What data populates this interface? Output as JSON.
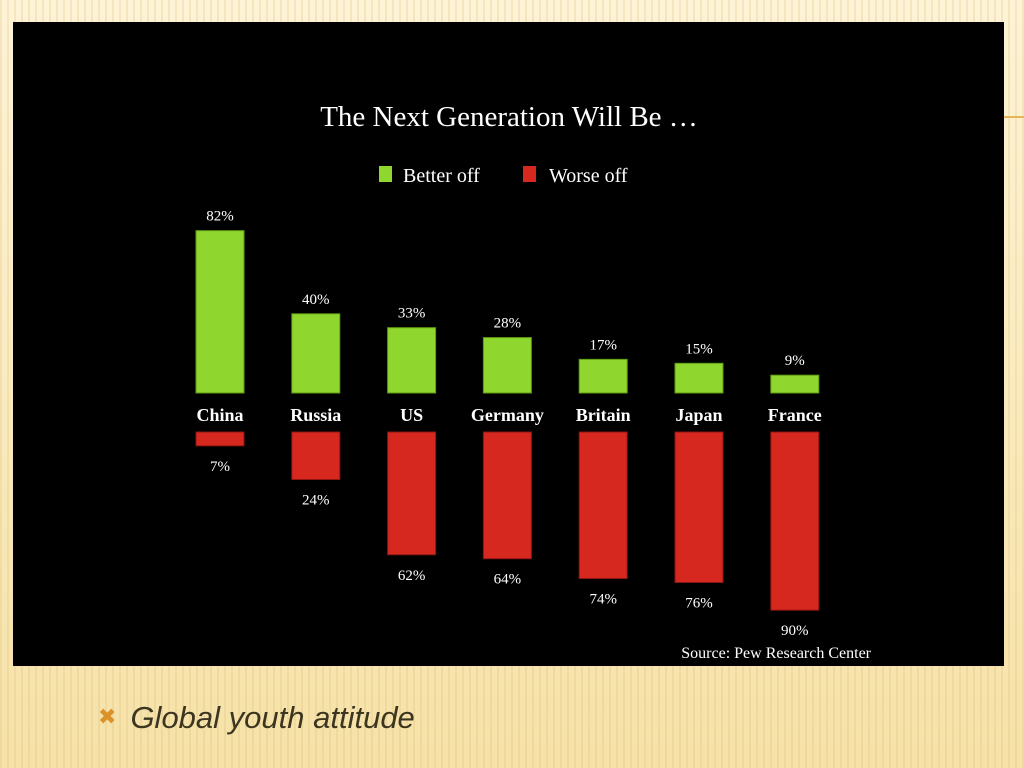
{
  "slide": {
    "bullet_icon": "x-mark-bullet-icon",
    "bullet_symbol": "✖",
    "bullet_text": "Global youth attitude",
    "accent_color": "#d9932a",
    "background_color": "#fbedc6"
  },
  "chart_data": {
    "type": "bar",
    "title": "The Next Generation Will Be …",
    "categories": [
      "China",
      "Russia",
      "US",
      "Germany",
      "Britain",
      "Japan",
      "France"
    ],
    "series": [
      {
        "name": "Better off",
        "color": "#8fd62e",
        "values": [
          82,
          40,
          33,
          28,
          17,
          15,
          9
        ]
      },
      {
        "name": "Worse off",
        "color": "#d6281e",
        "values": [
          7,
          24,
          62,
          64,
          74,
          76,
          90
        ]
      }
    ],
    "value_labels": {
      "Better off": [
        "82%",
        "40%",
        "33%",
        "28%",
        "17%",
        "15%",
        "9%"
      ],
      "Worse off": [
        "7%",
        "24%",
        "62%",
        "64%",
        "74%",
        "76%",
        "90%"
      ]
    },
    "layout_note_free": true,
    "legend_position": "top-center",
    "grid": false,
    "source": "Source: Pew Research Center"
  }
}
